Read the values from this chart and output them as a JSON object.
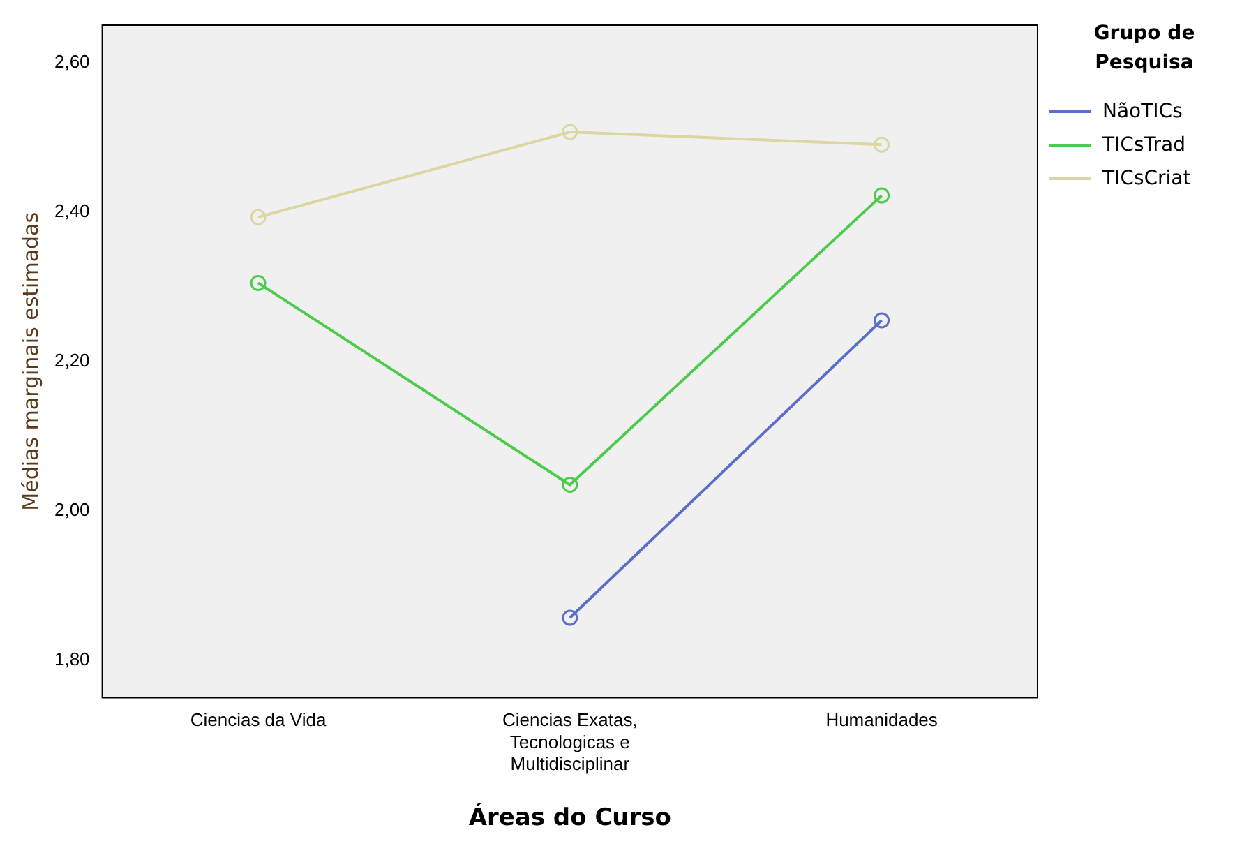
{
  "chart_data": {
    "type": "line",
    "xlabel": "Áreas do Curso",
    "ylabel": "Médias marginais estimadas",
    "legend_title": "Grupo de Pesquisa",
    "categories": [
      "Ciencias da Vida",
      "Ciencias Exatas, Tecnologicas e Multidisciplinar",
      "Humanidades"
    ],
    "series": [
      {
        "name": "NãoTICs",
        "color": "#5b6ec9",
        "values": [
          null,
          1.857,
          2.255
        ]
      },
      {
        "name": "TICsTrad",
        "color": "#4ccb4c",
        "values": [
          2.305,
          2.035,
          2.422
        ]
      },
      {
        "name": "TICsCriat",
        "color": "#dcd6a2",
        "values": [
          2.393,
          2.507,
          2.49
        ]
      }
    ],
    "ylim": [
      1.75,
      2.65
    ],
    "yticks": [
      {
        "value": 1.8,
        "label": "1,80"
      },
      {
        "value": 2.0,
        "label": "2,00"
      },
      {
        "value": 2.2,
        "label": "2,20"
      },
      {
        "value": 2.4,
        "label": "2,40"
      },
      {
        "value": 2.6,
        "label": "2,60"
      }
    ],
    "grid": false,
    "legend": "right",
    "marker": "circle",
    "line_style": "solid"
  }
}
